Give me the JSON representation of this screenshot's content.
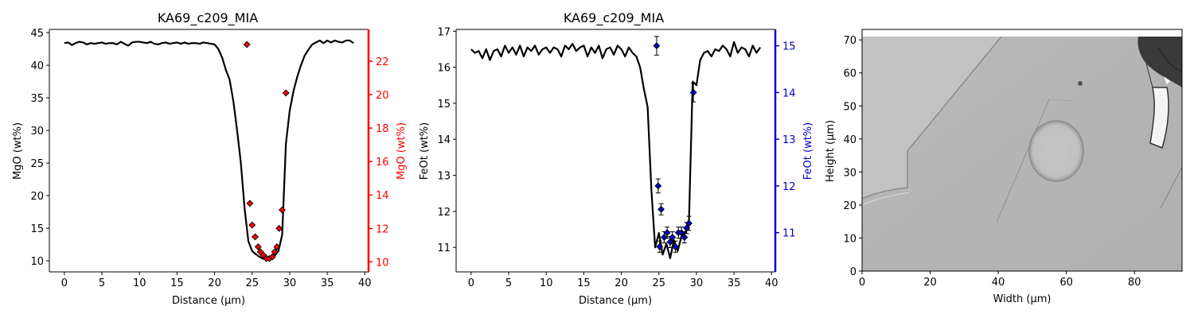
{
  "chart_data": [
    {
      "type": "line",
      "title": "KA69_c209_MIA",
      "xlabel": "Distance (µm)",
      "ylabel": "MgO (wt%)",
      "xlim": [
        -2,
        40.5
      ],
      "ylim": [
        8.3,
        45.5
      ],
      "xticks": [
        0,
        5,
        10,
        15,
        20,
        25,
        30,
        35,
        40
      ],
      "yticks": [
        10,
        15,
        20,
        25,
        30,
        35,
        40,
        45
      ],
      "line": {
        "color": "#000000",
        "x": [
          0,
          0.5,
          1,
          1.5,
          2,
          2.5,
          3,
          3.5,
          4,
          4.5,
          5,
          5.5,
          6,
          6.5,
          7,
          7.5,
          8,
          8.5,
          9,
          9.5,
          10,
          10.5,
          11,
          11.5,
          12,
          12.5,
          13,
          13.5,
          14,
          14.5,
          15,
          15.5,
          16,
          16.5,
          17,
          17.5,
          18,
          18.5,
          19,
          19.5,
          20,
          20.5,
          21,
          21.5,
          22,
          22.5,
          23,
          23.5,
          24,
          24.5,
          25,
          25.5,
          26,
          26.5,
          27,
          27.5,
          28,
          28.5,
          29,
          29.5,
          30,
          30.5,
          31,
          31.5,
          32,
          32.5,
          33,
          33.5,
          34,
          34.5,
          35,
          35.5,
          36,
          36.5,
          37,
          37.5,
          38,
          38.5
        ],
        "y": [
          43.4,
          43.5,
          43.1,
          43.4,
          43.6,
          43.5,
          43.2,
          43.4,
          43.3,
          43.4,
          43.5,
          43.3,
          43.4,
          43.4,
          43.2,
          43.6,
          43.3,
          43.0,
          43.5,
          43.6,
          43.6,
          43.5,
          43.4,
          43.6,
          43.3,
          43.2,
          43.4,
          43.5,
          43.3,
          43.4,
          43.5,
          43.3,
          43.5,
          43.3,
          43.4,
          43.4,
          43.3,
          43.5,
          43.4,
          43.3,
          43.2,
          42.5,
          41.2,
          39.3,
          37.8,
          34.5,
          30.0,
          25.0,
          18.0,
          13.0,
          11.5,
          11.0,
          10.6,
          10.3,
          10.2,
          10.4,
          10.8,
          11.5,
          14.0,
          28.0,
          33.0,
          36.0,
          38.2,
          40.0,
          41.5,
          42.4,
          43.2,
          43.5,
          43.8,
          43.4,
          43.8,
          43.5,
          43.8,
          43.6,
          43.5,
          43.8,
          43.8,
          43.4
        ]
      },
      "secondary": {
        "ylabel": "MgO (wt%)",
        "color": "#ff0000",
        "ylim": [
          9.4,
          23.9
        ],
        "yticks": [
          10,
          12,
          14,
          16,
          18,
          20,
          22
        ],
        "points": {
          "x": [
            24.3,
            24.7,
            25.0,
            25.4,
            25.8,
            26.1,
            26.5,
            26.9,
            27.3,
            27.7,
            28.0,
            28.3,
            28.6,
            29.0,
            29.5
          ],
          "y": [
            23.0,
            13.5,
            12.2,
            11.5,
            10.9,
            10.6,
            10.4,
            10.2,
            10.2,
            10.3,
            10.6,
            10.9,
            12.0,
            13.1,
            20.1
          ]
        }
      }
    },
    {
      "type": "line",
      "title": "KA69_c209_MIA",
      "xlabel": "Distance (µm)",
      "ylabel": "FeOt (wt%)",
      "xlim": [
        -2,
        40.5
      ],
      "ylim": [
        10.32,
        17.05
      ],
      "xticks": [
        0,
        5,
        10,
        15,
        20,
        25,
        30,
        35,
        40
      ],
      "yticks": [
        11,
        12,
        13,
        14,
        15,
        16,
        17
      ],
      "line": {
        "color": "#000000",
        "x": [
          0,
          0.5,
          1,
          1.5,
          2,
          2.5,
          3,
          3.5,
          4,
          4.5,
          5,
          5.5,
          6,
          6.5,
          7,
          7.5,
          8,
          8.5,
          9,
          9.5,
          10,
          10.5,
          11,
          11.5,
          12,
          12.5,
          13,
          13.5,
          14,
          14.5,
          15,
          15.5,
          16,
          16.5,
          17,
          17.5,
          18,
          18.5,
          19,
          19.5,
          20,
          20.5,
          21,
          21.5,
          22,
          22.5,
          23,
          23.5,
          24,
          24.5,
          25,
          25.5,
          26,
          26.5,
          27,
          27.5,
          28,
          28.5,
          29,
          29.5,
          30,
          30.5,
          31,
          31.5,
          32,
          32.5,
          33,
          33.5,
          34,
          34.5,
          35,
          35.5,
          36,
          36.5,
          37,
          37.5,
          38,
          38.5
        ],
        "y": [
          16.5,
          16.4,
          16.45,
          16.25,
          16.5,
          16.2,
          16.45,
          16.5,
          16.3,
          16.6,
          16.4,
          16.55,
          16.35,
          16.6,
          16.3,
          16.55,
          16.45,
          16.6,
          16.35,
          16.5,
          16.55,
          16.4,
          16.55,
          16.5,
          16.3,
          16.6,
          16.5,
          16.65,
          16.45,
          16.55,
          16.6,
          16.3,
          16.55,
          16.4,
          16.6,
          16.25,
          16.5,
          16.55,
          16.35,
          16.6,
          16.5,
          16.3,
          16.55,
          16.4,
          16.3,
          16.0,
          15.4,
          14.9,
          12.6,
          11.0,
          11.4,
          10.8,
          11.1,
          10.7,
          11.2,
          10.9,
          11.3,
          11.4,
          11.7,
          15.6,
          15.5,
          16.2,
          16.4,
          16.45,
          16.3,
          16.5,
          16.45,
          16.6,
          16.5,
          16.3,
          16.7,
          16.4,
          16.55,
          16.5,
          16.3,
          16.6,
          16.4,
          16.55
        ]
      },
      "secondary": {
        "ylabel": "FeOt (wt%)",
        "color": "#0000cc",
        "ylim": [
          10.16,
          15.35
        ],
        "yticks": [
          11,
          12,
          13,
          14,
          15
        ],
        "points": {
          "x": [
            24.7,
            24.9,
            25.1,
            25.3,
            25.7,
            26.1,
            26.5,
            26.8,
            27.2,
            27.6,
            28.0,
            28.4,
            28.7,
            29.0,
            29.6
          ],
          "y": [
            15.0,
            12.0,
            10.7,
            11.5,
            10.9,
            11.0,
            10.8,
            10.9,
            10.7,
            11.0,
            11.0,
            10.9,
            11.1,
            11.2,
            14.0
          ],
          "err": [
            0.2,
            0.15,
            0.12,
            0.12,
            0.12,
            0.12,
            0.12,
            0.12,
            0.12,
            0.12,
            0.12,
            0.12,
            0.12,
            0.15,
            0.2
          ]
        }
      }
    },
    {
      "type": "image",
      "xlabel": "Width (µm)",
      "ylabel": "Height (µm)",
      "xlim": [
        0,
        94
      ],
      "ylim": [
        0,
        71
      ],
      "xticks": [
        0,
        20,
        40,
        60,
        80
      ],
      "yticks": [
        0,
        10,
        20,
        30,
        40,
        50,
        60,
        70
      ]
    }
  ]
}
